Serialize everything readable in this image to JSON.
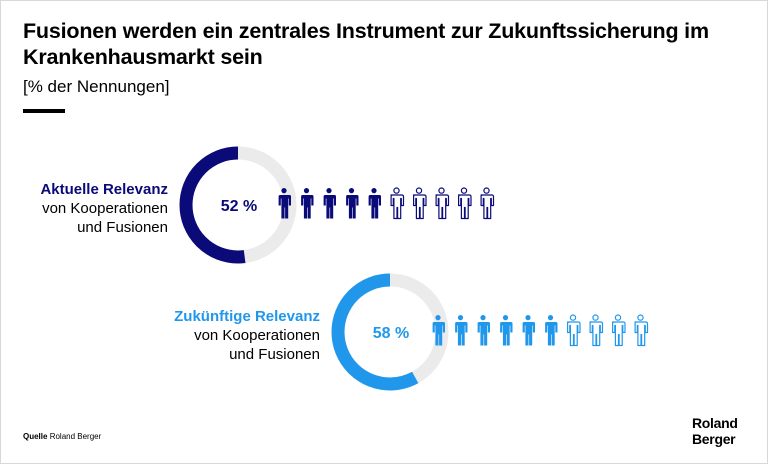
{
  "title": "Fusionen werden ein zentrales Instrument zur Zukunftssicherung im Krankenhausmarkt sein",
  "subtitle": "[% der Nennungen]",
  "source": {
    "label": "Quelle",
    "value": "Roland Berger"
  },
  "logo": {
    "line1": "Roland",
    "line2": "Berger"
  },
  "colors": {
    "dark": "#0a0a78",
    "light": "#2197ec",
    "track": "#ebebeb"
  },
  "chart_data": [
    {
      "type": "donut-pictogram",
      "label_bold": "Aktuelle Relevanz",
      "label_rest_1": "von Kooperationen",
      "label_rest_2": "und Fusionen",
      "value": 52,
      "value_label": "52 %",
      "icons_total": 10,
      "icons_filled": 5,
      "unit": "%",
      "color": "#0a0a78"
    },
    {
      "type": "donut-pictogram",
      "label_bold": "Zukünftige Relevanz",
      "label_rest_1": "von Kooperationen",
      "label_rest_2": "und Fusionen",
      "value": 58,
      "value_label": "58 %",
      "icons_total": 10,
      "icons_filled": 6,
      "unit": "%",
      "color": "#2197ec"
    }
  ]
}
